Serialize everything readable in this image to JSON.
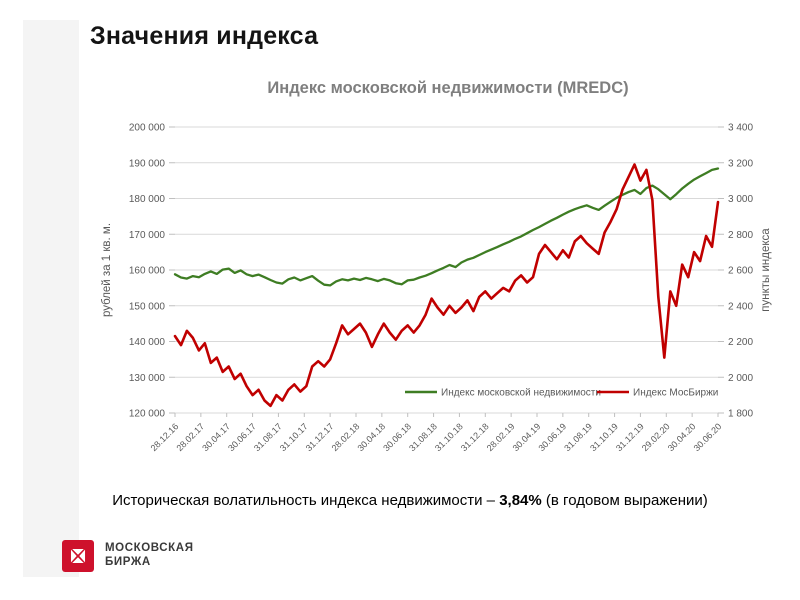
{
  "slide": {
    "title": "Значения индекса",
    "footer": {
      "volatility_prefix": "Историческая волатильность индекса недвижимости – ",
      "volatility_value": "3,84%",
      "volatility_suffix": " (в годовом выражении)"
    },
    "logo": {
      "line1": "МОСКОВСКАЯ",
      "line2": "БИРЖА",
      "color": "#ce112c"
    }
  },
  "chart_data": {
    "type": "line",
    "title": "Индекс московской недвижимости (MREDC)",
    "grid": true,
    "legend_position": "inside-bottom-right",
    "left_axis": {
      "label": "рублей за 1 кв. м.",
      "min": 120000,
      "max": 200000,
      "step": 10000,
      "tick_labels": [
        "200 000",
        "190 000",
        "180 000",
        "170 000",
        "160 000",
        "150 000",
        "140 000",
        "130 000",
        "120 000"
      ]
    },
    "right_axis": {
      "label": "пункты индекса",
      "min": 1800,
      "max": 3400,
      "step": 200,
      "tick_labels": [
        "3 400",
        "3 200",
        "3 000",
        "2 800",
        "2 600",
        "2 400",
        "2 200",
        "2 000",
        "1 800"
      ]
    },
    "x_ticks": [
      "28.12.16",
      "28.02.17",
      "30.04.17",
      "30.06.17",
      "31.08.17",
      "31.10.17",
      "31.12.17",
      "28.02.18",
      "30.04.18",
      "30.06.18",
      "31.08.18",
      "31.10.18",
      "31.12.18",
      "28.02.19",
      "30.04.19",
      "30.06.19",
      "31.08.19",
      "31.10.19",
      "31.12.19",
      "29.02.20",
      "30.04.20",
      "30.06.20"
    ],
    "series": [
      {
        "name": "Индекс московской недвижимости",
        "axis": "left",
        "color": "#3e7d23",
        "width": 2.3,
        "values": [
          158800,
          157900,
          157600,
          158300,
          158000,
          158900,
          159600,
          158900,
          160100,
          160400,
          159200,
          159900,
          158800,
          158300,
          158700,
          158000,
          157200,
          156500,
          156200,
          157400,
          157900,
          157100,
          157700,
          158300,
          157000,
          155900,
          155700,
          156800,
          157400,
          157100,
          157600,
          157200,
          157800,
          157400,
          156900,
          157500,
          157100,
          156300,
          156000,
          157100,
          157300,
          157900,
          158400,
          159100,
          159900,
          160600,
          161400,
          160800,
          162100,
          162900,
          163400,
          164200,
          165000,
          165700,
          166400,
          167200,
          167900,
          168700,
          169400,
          170300,
          171200,
          172000,
          172900,
          173800,
          174600,
          175500,
          176300,
          177000,
          177600,
          178100,
          177400,
          176800,
          178000,
          179100,
          180200,
          181000,
          181800,
          182400,
          181300,
          182900,
          183600,
          182600,
          181200,
          179800,
          181200,
          182800,
          184100,
          185300,
          186200,
          187100,
          188000,
          188400
        ]
      },
      {
        "name": "Индекс МосБиржи",
        "axis": "right",
        "color": "#c00000",
        "width": 2.6,
        "values": [
          2230,
          2180,
          2260,
          2220,
          2150,
          2190,
          2080,
          2110,
          2030,
          2060,
          1990,
          2020,
          1950,
          1900,
          1930,
          1870,
          1840,
          1900,
          1870,
          1930,
          1960,
          1920,
          1950,
          2060,
          2090,
          2060,
          2100,
          2190,
          2290,
          2240,
          2270,
          2300,
          2250,
          2170,
          2240,
          2300,
          2250,
          2210,
          2260,
          2290,
          2250,
          2290,
          2350,
          2440,
          2390,
          2350,
          2400,
          2360,
          2390,
          2430,
          2370,
          2450,
          2480,
          2440,
          2470,
          2500,
          2480,
          2540,
          2570,
          2530,
          2560,
          2690,
          2740,
          2700,
          2660,
          2710,
          2670,
          2760,
          2790,
          2750,
          2720,
          2690,
          2810,
          2870,
          2940,
          3050,
          3120,
          3190,
          3100,
          3160,
          2990,
          2450,
          2110,
          2480,
          2400,
          2630,
          2560,
          2700,
          2650,
          2790,
          2730,
          2980
        ]
      }
    ]
  }
}
